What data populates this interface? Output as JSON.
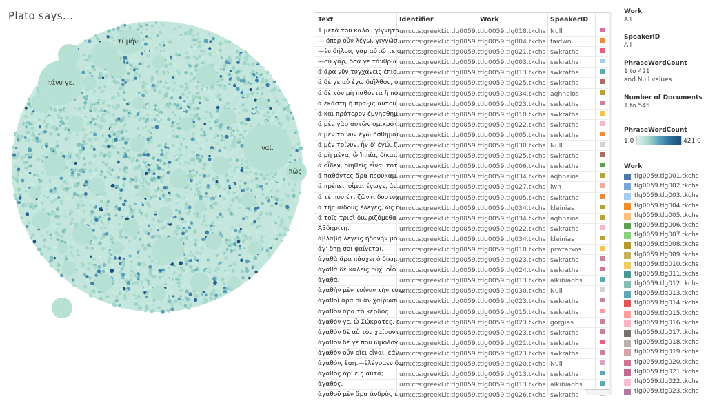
{
  "title": "Plato says...",
  "bubble_chart": {
    "labels": [
      "τί μήν;",
      "πάνυ γε.",
      "ναί.",
      "πῶς;"
    ]
  },
  "table": {
    "headers": [
      "Text",
      "Identifier",
      "Work",
      "SpeakerID"
    ],
    "rows": [
      {
        "text": "1 μετὰ τοῦ καλοῦ γίγνητα..",
        "id": "urn:cts:greekLit:tlg0059.t..",
        "work": "tlg0059.tlg018.tkchs",
        "speaker": "Null",
        "color": "#d96fa3"
      },
      {
        "text": "— ὅπερ οὖν λέγω, γιγνώσ..",
        "id": "urn:cts:greekLit:tlg0059.t..",
        "work": "tlg0059.tlg004.tkchs",
        "speaker": "faidwn",
        "color": "#f2893a"
      },
      {
        "text": "—ἐν δήλοις γὰρ αὐτῷ τε σ..",
        "id": "urn:cts:greekLit:tlg0059.t..",
        "work": "tlg0059.tlg021.tkchs",
        "speaker": "swkraths",
        "color": "#ea5f82"
      },
      {
        "text": "—σὺ γάρ, ὅσα γε τάνθρώ..",
        "id": "urn:cts:greekLit:tlg0059.t..",
        "work": "tlg0059.tlg003.tkchs",
        "speaker": "swkraths",
        "color": "#a5cdee"
      },
      {
        "text": "ἃ ἄρα νῦν τυγχάνεις ἐπισ..",
        "id": "urn:cts:greekLit:tlg0059.t..",
        "work": "tlg0059.tlg013.tkchs",
        "speaker": "swkraths",
        "color": "#5fa8b3"
      },
      {
        "text": "ἃ δέ γε αὖ ἐγὼ διῆλθον, ο..",
        "id": "urn:cts:greekLit:tlg0059.t..",
        "work": "tlg0059.tlg025.tkchs",
        "speaker": "swkraths",
        "color": "#a66f63"
      },
      {
        "text": "ἃ δὲ τὸν μὴ παθόντα ἢ ποι..",
        "id": "urn:cts:greekLit:tlg0059.t..",
        "work": "tlg0059.tlg034.tkchs",
        "speaker": "aqhnaios",
        "color": "#b5a23c"
      },
      {
        "text": "ἃ ἑκάστη ἡ πρᾶξις αὐτοῦ ..",
        "id": "urn:cts:greekLit:tlg0059.t..",
        "work": "tlg0059.tlg023.tkchs",
        "speaker": "swkraths",
        "color": "#c5839e"
      },
      {
        "text": "ἃ καὶ πρότερον ἐμνήσθημ..",
        "id": "urn:cts:greekLit:tlg0059.t..",
        "work": "tlg0059.tlg010.tkchs",
        "speaker": "swkraths",
        "color": "#f2c451"
      },
      {
        "text": "ἃ μὲν γὰρ αὐτῶν σμικρότ..",
        "id": "urn:cts:greekLit:tlg0059.t..",
        "work": "tlg0059.tlg022.tkchs",
        "speaker": "swkraths",
        "color": "#f6b7c8"
      },
      {
        "text": "ἃ μὲν τοίνυν ἐγὼ ᾔσθημαι..",
        "id": "urn:cts:greekLit:tlg0059.t..",
        "work": "tlg0059.tlg005.tkchs",
        "speaker": "swkraths",
        "color": "#f2893a"
      },
      {
        "text": "ἃ μὲν τοίνυν, ἦν δ' ἐγώ, ζ..",
        "id": "urn:cts:greekLit:tlg0059.t..",
        "work": "tlg0059.tlg030.tkchs",
        "speaker": "Null",
        "color": "#d2d2d2"
      },
      {
        "text": "ἅ μὴ μέγα, ὦ Ἱππία, δίκαι..",
        "id": "urn:cts:greekLit:tlg0059.t..",
        "work": "tlg0059.tlg025.tkchs",
        "speaker": "swkraths",
        "color": "#a66f63"
      },
      {
        "text": "ἃ οἶδεν, οἰηθεὶς εἶναι τοτ..",
        "id": "urn:cts:greekLit:tlg0059.t..",
        "work": "tlg0059.tlg006.tkchs",
        "speaker": "swkraths",
        "color": "#59a14f"
      },
      {
        "text": "ἃ παθόντες ἄρα πεφύκαμ..",
        "id": "urn:cts:greekLit:tlg0059.t..",
        "work": "tlg0059.tlg034.tkchs",
        "speaker": "aqhnaios",
        "color": "#b5a23c"
      },
      {
        "text": "ἃ πρέπει, οἶμαι ἔγωγε, ἀν..",
        "id": "urn:cts:greekLit:tlg0059.t..",
        "work": "tlg0059.tlg027.tkchs",
        "speaker": "iwn",
        "color": "#f4aa9a"
      },
      {
        "text": "ἅ τέ που ἔτι ζῶντι δυστυχ..",
        "id": "urn:cts:greekLit:tlg0059.t..",
        "work": "tlg0059.tlg005.tkchs",
        "speaker": "swkraths",
        "color": "#f2893a"
      },
      {
        "text": "ἃ τῆς αἰδοῦς ἔλεγες, ὡς οἱ..",
        "id": "urn:cts:greekLit:tlg0059.t..",
        "work": "tlg0059.tlg034.tkchs",
        "speaker": "kleinias",
        "color": "#b5a23c"
      },
      {
        "text": "ἃ τοῖς τρισὶ διωριζόμεθα ..",
        "id": "urn:cts:greekLit:tlg0059.t..",
        "work": "tlg0059.tlg034.tkchs",
        "speaker": "aqhnaios",
        "color": "#b5a23c"
      },
      {
        "text": "Ἀβδηρίτῃ.",
        "id": "urn:cts:greekLit:tlg0059.t..",
        "work": "tlg0059.tlg022.tkchs",
        "speaker": "swkraths",
        "color": "#f6b7c8"
      },
      {
        "text": "ἀβλαβῆ λέγεις ἡδονὴν μό..",
        "id": "urn:cts:greekLit:tlg0059.t..",
        "work": "tlg0059.tlg034.tkchs",
        "speaker": "kleinias",
        "color": "#b5a23c"
      },
      {
        "text": "ἄγ' ὅπῃ σοι φαίνεται.",
        "id": "urn:cts:greekLit:tlg0059.t..",
        "work": "tlg0059.tlg010.tkchs",
        "speaker": "prwtarxos",
        "color": "#f2c451"
      },
      {
        "text": "ἀγαθὰ ἄρα πάσχει ὁ δίκη..",
        "id": "urn:cts:greekLit:tlg0059.t..",
        "work": "tlg0059.tlg023.tkchs",
        "speaker": "swkraths",
        "color": "#c5839e"
      },
      {
        "text": "ἀγαθὰ δὲ καλεῖς οὐχὶ οἷο..",
        "id": "urn:cts:greekLit:tlg0059.t..",
        "work": "tlg0059.tlg024.tkchs",
        "speaker": "swkraths",
        "color": "#d37295"
      },
      {
        "text": "ἀγαθά.",
        "id": "urn:cts:greekLit:tlg0059.t..",
        "work": "tlg0059.tlg013.tkchs",
        "speaker": "alkibiadhs",
        "color": "#5fa8b3"
      },
      {
        "text": "ἀγαθὴν μὲν τοίνυν τὴν τοι..",
        "id": "urn:cts:greekLit:tlg0059.t..",
        "work": "tlg0059.tlg030.tkchs",
        "speaker": "Null",
        "color": "#d2d2d2"
      },
      {
        "text": "ἀγαθοὶ ἄρα οἳ ἂν χαίρωσι..",
        "id": "urn:cts:greekLit:tlg0059.t..",
        "work": "tlg0059.tlg023.tkchs",
        "speaker": "swkraths",
        "color": "#c5839e"
      },
      {
        "text": "ἀγαθὸν ἄρα τὸ κέρδος.",
        "id": "urn:cts:greekLit:tlg0059.t..",
        "work": "tlg0059.tlg015.tkchs",
        "speaker": "swkraths",
        "color": "#ff9d9a"
      },
      {
        "text": "ἀγαθόν γε, ὦ Σώκρατες, ε..",
        "id": "urn:cts:greekLit:tlg0059.t..",
        "work": "tlg0059.tlg023.tkchs",
        "speaker": "gorgias",
        "color": "#c5839e"
      },
      {
        "text": "ἀγαθὸν δὲ αὖ τὸν χαίροντ..",
        "id": "urn:cts:greekLit:tlg0059.t..",
        "work": "tlg0059.tlg023.tkchs",
        "speaker": "swkraths",
        "color": "#c5839e"
      },
      {
        "text": "ἀγαθὸν δέ γέ που ὡμολογ..",
        "id": "urn:cts:greekLit:tlg0059.t..",
        "work": "tlg0059.tlg021.tkchs",
        "speaker": "swkraths",
        "color": "#ea5f82"
      },
      {
        "text": "ἀγαθὸν οὖν οἴει εἶναι, ἐάν..",
        "id": "urn:cts:greekLit:tlg0059.t..",
        "work": "tlg0059.tlg023.tkchs",
        "speaker": "swkraths",
        "color": "#c5839e"
      },
      {
        "text": "ἀγαθόν, ἔφη.—ἐλέγομεν δ..",
        "id": "urn:cts:greekLit:tlg0059.t..",
        "work": "tlg0059.tlg020.tkchs",
        "speaker": "Null",
        "color": "#d4a6c8"
      },
      {
        "text": "ἀγαθὸς ἄρ' εἰς αὐτά;",
        "id": "urn:cts:greekLit:tlg0059.t..",
        "work": "tlg0059.tlg013.tkchs",
        "speaker": "swkraths",
        "color": "#5fa8b3"
      },
      {
        "text": "ἀγαθός.",
        "id": "urn:cts:greekLit:tlg0059.t..",
        "work": "tlg0059.tlg013.tkchs",
        "speaker": "alkibiadhs",
        "color": "#5fa8b3"
      },
      {
        "text": "ἀγαθοῦ μὲν ἄρα ἀνδρὸς ἐ..",
        "id": "urn:cts:greekLit:tlg0059.t..",
        "work": "tlg0059.tlg026.tkchs",
        "speaker": "swkraths",
        "color": "#d9c2b0"
      }
    ]
  },
  "filters": {
    "work_title": "Work",
    "work_value": "All",
    "speaker_title": "SpeakerID",
    "speaker_value": "All",
    "pwc_title": "PhraseWordCount",
    "pwc_value1": "1 to 421",
    "pwc_value2": "and Null values",
    "docs_title": "Number of Documents",
    "docs_value": "1 to 545"
  },
  "gradient_legend": {
    "title": "PhraseWordCount",
    "min": "1.0",
    "max": "421.0"
  },
  "work_legend": {
    "title": "Work",
    "items": [
      {
        "label": "tlg0059.tlg001.tkchs",
        "color": "#4e79a7"
      },
      {
        "label": "tlg0059.tlg002.tkchs",
        "color": "#7aa6d6"
      },
      {
        "label": "tlg0059.tlg003.tkchs",
        "color": "#a5cdee"
      },
      {
        "label": "tlg0059.tlg004.tkchs",
        "color": "#f28e2b"
      },
      {
        "label": "tlg0059.tlg005.tkchs",
        "color": "#ffbe7d"
      },
      {
        "label": "tlg0059.tlg006.tkchs",
        "color": "#59a14f"
      },
      {
        "label": "tlg0059.tlg007.tkchs",
        "color": "#8cd17d"
      },
      {
        "label": "tlg0059.tlg008.tkchs",
        "color": "#b6992d"
      },
      {
        "label": "tlg0059.tlg009.tkchs",
        "color": "#c5b35c"
      },
      {
        "label": "tlg0059.tlg010.tkchs",
        "color": "#f1ce63"
      },
      {
        "label": "tlg0059.tlg011.tkchs",
        "color": "#499894"
      },
      {
        "label": "tlg0059.tlg012.tkchs",
        "color": "#86bcb6"
      },
      {
        "label": "tlg0059.tlg013.tkchs",
        "color": "#5fa8b3"
      },
      {
        "label": "tlg0059.tlg014.tkchs",
        "color": "#e15759"
      },
      {
        "label": "tlg0059.tlg015.tkchs",
        "color": "#ff9d9a"
      },
      {
        "label": "tlg0059.tlg016.tkchs",
        "color": "#fbb4c4"
      },
      {
        "label": "tlg0059.tlg017.tkchs",
        "color": "#79706e"
      },
      {
        "label": "tlg0059.tlg018.tkchs",
        "color": "#bab0ac"
      },
      {
        "label": "tlg0059.tlg019.tkchs",
        "color": "#d4a6a8"
      },
      {
        "label": "tlg0059.tlg020.tkchs",
        "color": "#d37295"
      },
      {
        "label": "tlg0059.tlg021.tkchs",
        "color": "#c46b8f"
      },
      {
        "label": "tlg0059.tlg022.tkchs",
        "color": "#fabfd2"
      },
      {
        "label": "tlg0059.tlg023.tkchs",
        "color": "#b07aa1"
      }
    ]
  }
}
